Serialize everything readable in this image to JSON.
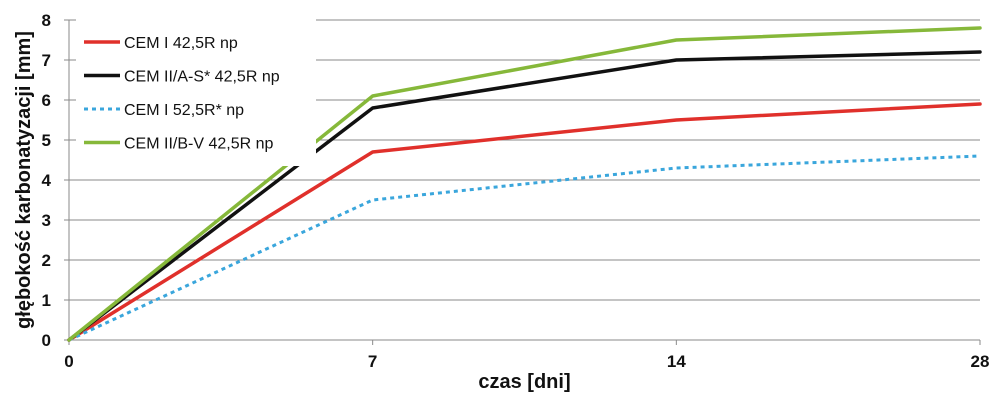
{
  "chart_data": {
    "type": "line",
    "xlabel": "czas [dni]",
    "ylabel": "głębokość karbonatyzacji [mm]",
    "x": [
      0,
      7,
      14,
      28
    ],
    "x_tick_labels": [
      "0",
      "7",
      "14",
      "28"
    ],
    "x_scale": "categorical-equal-spacing",
    "ylim": [
      0,
      8
    ],
    "y_ticks": [
      0,
      1,
      2,
      3,
      4,
      5,
      6,
      7,
      8
    ],
    "grid": "horizontal",
    "legend_position": "top-left",
    "series": [
      {
        "name": "CEM I 42,5R np",
        "values": [
          0,
          4.7,
          5.5,
          5.9
        ],
        "color": "#e0302b",
        "style": "solid"
      },
      {
        "name": "CEM II/A-S* 42,5R np",
        "values": [
          0,
          5.8,
          7.0,
          7.2
        ],
        "color": "#111111",
        "style": "solid"
      },
      {
        "name": "CEM I 52,5R* np",
        "values": [
          0,
          3.5,
          4.3,
          4.6
        ],
        "color": "#3aa6dc",
        "style": "dashed"
      },
      {
        "name": "CEM II/B-V 42,5R np",
        "values": [
          0,
          6.1,
          7.5,
          7.8
        ],
        "color": "#86b83a",
        "style": "solid"
      }
    ]
  }
}
